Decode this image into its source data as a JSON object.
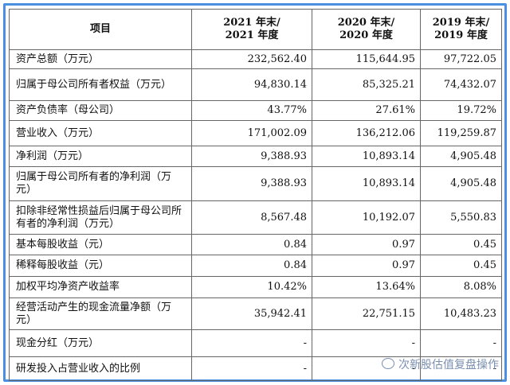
{
  "table": {
    "header": [
      [
        "项目"
      ],
      [
        "2021 年末/",
        "2021 年度"
      ],
      [
        "2020 年末/",
        "2020 年度"
      ],
      [
        "2019 年末/",
        "2019 年度"
      ]
    ],
    "rows": [
      [
        "资产总额（万元）",
        "232,562.40",
        "115,644.95",
        "97,722.05"
      ],
      [
        "归属于母公司所有者权益（万元）",
        "94,830.14",
        "85,325.21",
        "74,432.07"
      ],
      [
        "资产负债率（母公司）",
        "43.77%",
        "27.61%",
        "19.72%"
      ],
      [
        "营业收入（万元）",
        "171,002.09",
        "136,212.06",
        "119,259.87"
      ],
      [
        "净利润（万元）",
        "9,388.93",
        "10,893.14",
        "4,905.48"
      ],
      [
        "归属于母公司所有者的净利润（万元）",
        "9,388.93",
        "10,893.14",
        "4,905.48"
      ],
      [
        "扣除非经常性损益后归属于母公司所有者的净利润（万元）",
        "8,567.48",
        "10,192.07",
        "5,550.83"
      ],
      [
        "基本每股收益（元）",
        "0.84",
        "0.97",
        "0.45"
      ],
      [
        "稀释每股收益（元）",
        "0.84",
        "0.97",
        "0.45"
      ],
      [
        "加权平均净资产收益率",
        "10.42%",
        "13.64%",
        "8.08%"
      ],
      [
        "经营活动产生的现金流量净额（万元）",
        "35,942.41",
        "22,751.15",
        "10,483.23"
      ],
      [
        "现金分红（万元）",
        "-",
        "-",
        "-"
      ],
      [
        "研发投入占营业收入的比例",
        "-",
        "-",
        "-"
      ]
    ]
  },
  "watermark": "次新股估值复盘操作"
}
